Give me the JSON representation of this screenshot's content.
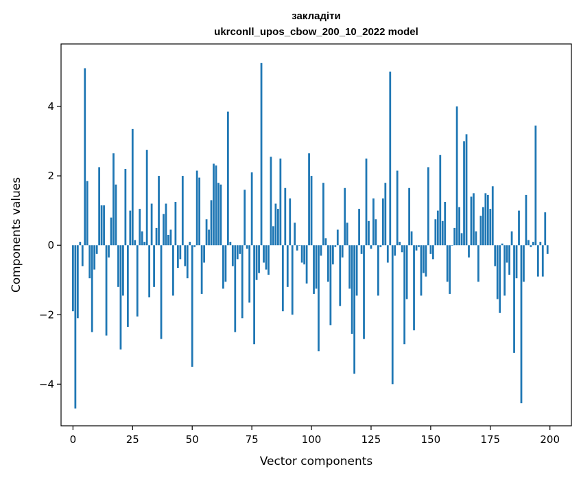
{
  "chart_data": {
    "type": "bar",
    "title": [
      "закладіти",
      "ukrconll_upos_cbow_200_10_2022 model"
    ],
    "xlabel": "Vector components",
    "ylabel": "Components values",
    "xlim": [
      -5,
      209
    ],
    "ylim": [
      -5.2,
      5.8
    ],
    "xticks": [
      0,
      25,
      50,
      75,
      100,
      125,
      150,
      175,
      200
    ],
    "yticks": [
      -4,
      -2,
      0,
      2,
      4
    ],
    "grid": false,
    "bar_color": "#1f77b4",
    "values": [
      -1.9,
      -4.7,
      -2.1,
      0.1,
      -0.6,
      5.1,
      1.85,
      -0.95,
      -2.5,
      -0.7,
      -0.25,
      2.25,
      1.15,
      1.15,
      -2.6,
      -0.35,
      0.8,
      2.65,
      1.75,
      -1.2,
      -3.0,
      -1.45,
      2.2,
      -2.35,
      1.0,
      3.35,
      0.15,
      -2.05,
      1.05,
      0.4,
      0.1,
      2.75,
      -1.5,
      1.2,
      -1.2,
      0.5,
      2.0,
      -2.7,
      0.9,
      1.2,
      0.3,
      0.45,
      -1.45,
      1.25,
      -0.65,
      -0.4,
      2.0,
      -0.6,
      -0.95,
      0.1,
      -3.5,
      -0.05,
      2.15,
      1.95,
      -1.4,
      -0.5,
      0.75,
      0.45,
      1.3,
      2.35,
      2.3,
      1.8,
      1.75,
      -1.25,
      -1.05,
      3.85,
      0.1,
      -0.6,
      -2.5,
      -0.4,
      -0.25,
      -2.1,
      1.6,
      -0.1,
      -1.65,
      2.1,
      -2.85,
      -1.0,
      -0.8,
      5.25,
      -0.5,
      -0.7,
      -0.85,
      2.55,
      0.55,
      1.2,
      1.05,
      2.5,
      -1.9,
      1.65,
      -1.2,
      1.35,
      -2.0,
      0.65,
      -0.15,
      0.0,
      -0.5,
      -0.55,
      -1.1,
      2.65,
      2.0,
      -1.4,
      -1.25,
      -3.05,
      -0.3,
      1.8,
      0.2,
      -1.05,
      -2.3,
      -0.55,
      -0.05,
      0.45,
      -1.75,
      -0.35,
      1.65,
      0.65,
      -1.25,
      -2.55,
      -3.7,
      -1.45,
      1.05,
      -0.25,
      -2.7,
      2.5,
      0.7,
      -0.1,
      1.35,
      0.75,
      -1.45,
      -0.05,
      1.35,
      1.8,
      -0.5,
      5.0,
      -4.0,
      -0.3,
      2.15,
      0.1,
      -0.2,
      -2.85,
      -1.55,
      1.65,
      0.4,
      -2.45,
      -0.15,
      -0.05,
      -1.45,
      -0.8,
      -0.9,
      2.25,
      -0.25,
      -0.4,
      0.75,
      1.0,
      2.6,
      0.7,
      1.25,
      -1.05,
      -1.4,
      0.0,
      0.5,
      4.0,
      1.1,
      0.35,
      3.0,
      3.2,
      -0.35,
      1.4,
      1.5,
      0.4,
      -1.05,
      0.85,
      1.1,
      1.5,
      1.45,
      1.05,
      1.7,
      -0.6,
      -1.55,
      -1.95,
      0.05,
      -1.45,
      -0.5,
      -0.85,
      0.4,
      -3.1,
      -0.95,
      1.0,
      -4.55,
      -1.05,
      1.45,
      0.15,
      -0.05,
      0.1,
      3.45,
      -0.9,
      0.1,
      -0.9,
      0.95,
      -0.25
    ]
  }
}
